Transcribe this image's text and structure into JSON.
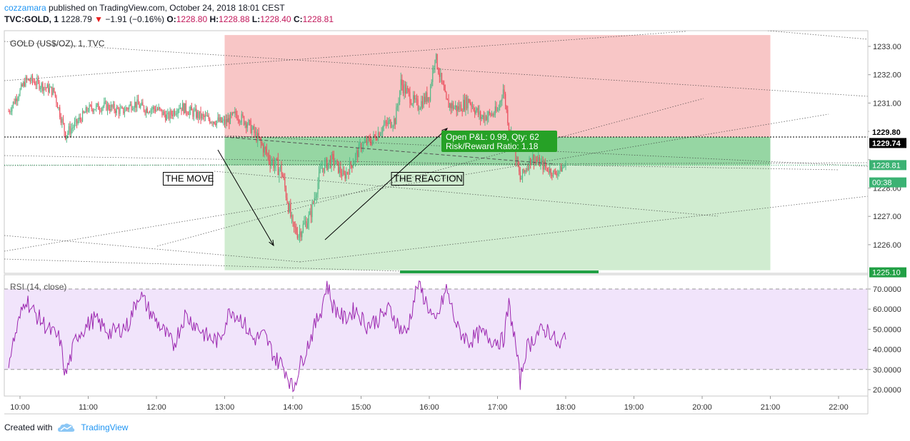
{
  "header": {
    "author": "cozzamara",
    "published_text": "published on TradingView.com, October 24, 2018 18:01 CEST",
    "symbol": "TVC:GOLD, 1",
    "last": "1228.79",
    "change": "−1.91 (−0.16%)",
    "o_label": "O:",
    "o_value": "1228.80",
    "h_label": "H:",
    "h_value": "1228.88",
    "l_label": "L:",
    "l_value": "1228.40",
    "c_label": "C:",
    "c_value": "1228.81"
  },
  "footer": {
    "created_with": "Created with",
    "brand": "TradingView",
    "logo_icon": "tradingview-cloud-icon"
  },
  "colors": {
    "up": "#53b987",
    "down": "#eb4d5c",
    "stop_zone": "#f7bcbc",
    "target_zone": "#cbeacb",
    "entry_band": "#8fd49d",
    "badge": "#26a126",
    "rsi": "#9c27b0",
    "rsi_band": "#f1e4fb",
    "accent": "#2196f3"
  },
  "chart_data": [
    {
      "type": "candlestick",
      "title": "GOLD (US$/OZ), 1, TVC",
      "ylim": [
        1225.0,
        1233.5
      ],
      "yticks": [
        1226,
        1227,
        1228,
        1229,
        1230,
        1231,
        1232,
        1233
      ],
      "ytick_labels": [
        "1226.00",
        "1227.00",
        "1228.00",
        "",
        "1230.00",
        "1231.00",
        "1232.00",
        "1233.00"
      ],
      "xticks": [
        "10:00",
        "11:00",
        "12:00",
        "13:00",
        "14:00",
        "15:00",
        "16:00",
        "17:00",
        "18:00",
        "19:00",
        "20:00",
        "21:00",
        "22:00"
      ],
      "price_path": {
        "time": [
          "09:50",
          "10:05",
          "10:10",
          "10:20",
          "10:30",
          "10:40",
          "10:50",
          "11:00",
          "11:15",
          "11:30",
          "11:40",
          "11:50",
          "12:00",
          "12:10",
          "12:20",
          "12:30",
          "12:40",
          "12:50",
          "13:00",
          "13:10",
          "13:20",
          "13:30",
          "13:40",
          "13:50",
          "14:00",
          "14:05",
          "14:15",
          "14:25",
          "14:35",
          "14:45",
          "14:55",
          "15:00",
          "15:10",
          "15:20",
          "15:30",
          "15:35",
          "15:45",
          "15:50",
          "16:00",
          "16:05",
          "16:15",
          "16:25",
          "16:35",
          "16:45",
          "16:55",
          "17:00",
          "17:05",
          "17:10",
          "17:15",
          "17:20",
          "17:30",
          "17:40",
          "17:50",
          "18:00"
        ],
        "close": [
          1230.7,
          1231.8,
          1231.8,
          1231.6,
          1231.4,
          1229.9,
          1230.3,
          1230.8,
          1230.9,
          1230.7,
          1231.0,
          1230.8,
          1230.8,
          1230.5,
          1230.9,
          1230.7,
          1230.5,
          1230.4,
          1230.3,
          1230.6,
          1230.3,
          1229.7,
          1229.0,
          1228.6,
          1226.6,
          1226.4,
          1227.0,
          1228.7,
          1229.0,
          1228.4,
          1229.1,
          1229.5,
          1229.7,
          1230.2,
          1230.4,
          1231.7,
          1231.1,
          1230.9,
          1231.3,
          1232.7,
          1231.0,
          1230.8,
          1231.1,
          1230.5,
          1230.6,
          1230.7,
          1231.5,
          1230.2,
          1229.3,
          1228.3,
          1229.1,
          1228.8,
          1228.5,
          1228.8
        ],
        "low": [
          1230.2,
          1231.3,
          1231.2,
          1231.0,
          1230.8,
          1229.2,
          1229.8,
          1230.3,
          1230.4,
          1230.2,
          1230.5,
          1230.3,
          1230.2,
          1230.0,
          1230.3,
          1230.1,
          1229.9,
          1229.8,
          1229.7,
          1230.0,
          1229.7,
          1229.0,
          1228.1,
          1227.5,
          1225.7,
          1225.4,
          1226.2,
          1227.9,
          1228.3,
          1227.9,
          1228.4,
          1228.9,
          1229.1,
          1229.6,
          1229.8,
          1230.9,
          1230.5,
          1230.3,
          1230.6,
          1231.8,
          1230.3,
          1230.1,
          1230.4,
          1229.8,
          1229.9,
          1230.0,
          1230.6,
          1229.5,
          1228.5,
          1227.7,
          1228.4,
          1228.2,
          1228.1,
          1228.4
        ],
        "high": [
          1231.2,
          1232.2,
          1232.2,
          1232.0,
          1231.8,
          1230.4,
          1230.8,
          1231.2,
          1231.4,
          1231.2,
          1231.6,
          1231.3,
          1231.3,
          1231.0,
          1231.4,
          1231.2,
          1231.0,
          1230.9,
          1230.8,
          1231.1,
          1230.9,
          1230.2,
          1229.6,
          1229.1,
          1227.1,
          1226.9,
          1227.6,
          1229.3,
          1229.6,
          1229.0,
          1229.7,
          1230.0,
          1230.3,
          1230.8,
          1231.0,
          1232.3,
          1231.8,
          1231.5,
          1232.0,
          1233.0,
          1231.6,
          1231.4,
          1231.7,
          1231.1,
          1231.1,
          1231.3,
          1231.7,
          1230.8,
          1229.9,
          1228.9,
          1229.6,
          1229.3,
          1229.0,
          1229.2
        ]
      },
      "position": {
        "side": "long",
        "entry": 1229.8,
        "stop": 1233.4,
        "target": 1225.1,
        "start": "13:00",
        "end": "21:00",
        "pnl_text": "Open P&L: 0.99, Qty: 62",
        "rr_text": "Risk/Reward Ratio: 1.18"
      },
      "price_labels": [
        {
          "text": "1229.80",
          "value": 1229.8,
          "style": "plain"
        },
        {
          "text": "1229.74",
          "value": 1229.74,
          "style": "dark"
        },
        {
          "text": "1228.81",
          "value": 1228.81,
          "style": "green"
        },
        {
          "text": "00:38",
          "value": 1228.4,
          "style": "green"
        },
        {
          "text": "1225.10",
          "value": 1225.1,
          "style": "darkgreen"
        }
      ],
      "annotations": [
        {
          "text": "THE MOVE",
          "time": "12:55",
          "price": 1228.0
        },
        {
          "text": "THE REACTION",
          "time": "15:55",
          "price": 1228.0
        }
      ]
    },
    {
      "type": "line",
      "title": "RSI (14, close)",
      "ylim": [
        17.5,
        73.5
      ],
      "yticks": [
        20,
        30,
        40,
        50,
        60,
        70
      ],
      "ytick_labels": [
        "20.0000",
        "30.0000",
        "40.0000",
        "50.0000",
        "60.0000",
        "70.0000"
      ],
      "band": [
        30,
        70
      ],
      "time": [
        "09:50",
        "10:05",
        "10:10",
        "10:25",
        "10:35",
        "10:40",
        "10:50",
        "11:05",
        "11:20",
        "11:35",
        "11:45",
        "11:55",
        "12:05",
        "12:15",
        "12:25",
        "12:35",
        "12:45",
        "12:55",
        "13:05",
        "13:15",
        "13:25",
        "13:35",
        "13:45",
        "13:50",
        "13:55",
        "14:00",
        "14:05",
        "14:15",
        "14:25",
        "14:30",
        "14:35",
        "14:45",
        "14:55",
        "15:05",
        "15:15",
        "15:25",
        "15:35",
        "15:40",
        "15:50",
        "16:00",
        "16:05",
        "16:15",
        "16:25",
        "16:35",
        "16:45",
        "16:55",
        "17:05",
        "17:10",
        "17:15",
        "17:20",
        "17:25",
        "17:35",
        "17:45",
        "17:55",
        "18:00"
      ],
      "values": [
        35,
        66,
        60,
        50,
        45,
        27,
        47,
        55,
        48,
        52,
        68,
        58,
        50,
        42,
        57,
        52,
        46,
        44,
        60,
        55,
        45,
        47,
        35,
        33,
        28,
        20,
        30,
        45,
        60,
        73,
        62,
        55,
        60,
        52,
        55,
        60,
        50,
        48,
        73,
        60,
        52,
        70,
        50,
        44,
        48,
        45,
        44,
        62,
        46,
        24,
        40,
        48,
        50,
        40,
        49
      ]
    }
  ]
}
